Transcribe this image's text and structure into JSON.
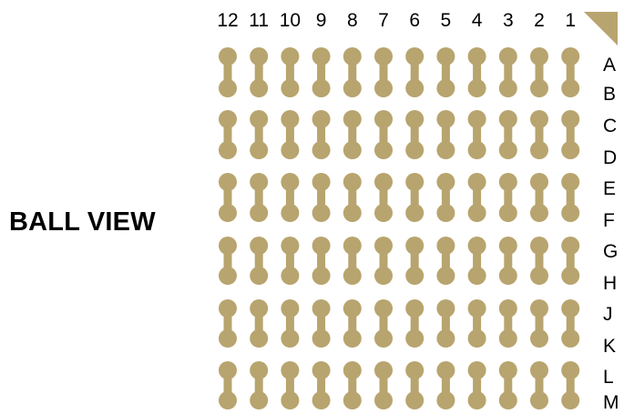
{
  "title": "BALL VIEW",
  "columns": [
    "12",
    "11",
    "10",
    "9",
    "8",
    "7",
    "6",
    "5",
    "4",
    "3",
    "2",
    "1"
  ],
  "rows": [
    "A",
    "B",
    "C",
    "D",
    "E",
    "F",
    "G",
    "H",
    "J",
    "K",
    "L",
    "M"
  ],
  "colors": {
    "pad": "#b8a46e",
    "marker": "#b8a46e",
    "text": "#000000"
  },
  "icons": {
    "pin1_marker": "triangle-corner-marker",
    "pad": "dogbone-ball-pad"
  }
}
